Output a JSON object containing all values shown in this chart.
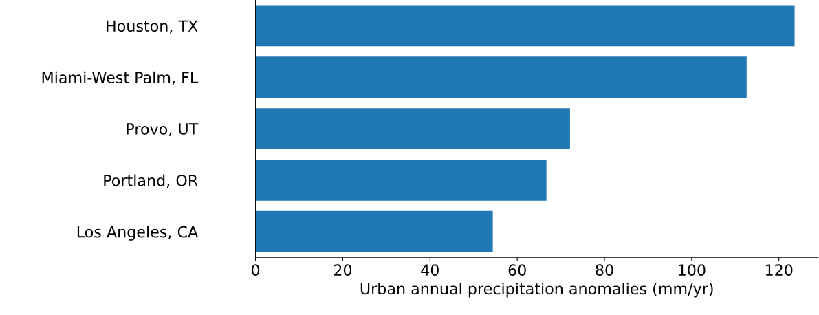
{
  "chart_data": {
    "type": "bar",
    "orientation": "horizontal",
    "xlabel": "Urban annual precipitation anomalies (mm/yr)",
    "categories": [
      "Houston, TX",
      "Miami-West Palm, FL",
      "Provo, UT",
      "Portland, OR",
      "Los Angeles, CA"
    ],
    "values": [
      123.6,
      112.6,
      72.1,
      66.7,
      54.4
    ],
    "color": "#1f77b4",
    "xlim": [
      0,
      129
    ],
    "xticks": [
      0,
      20,
      40,
      60,
      80,
      100,
      120
    ],
    "grid": false,
    "legend": false
  }
}
